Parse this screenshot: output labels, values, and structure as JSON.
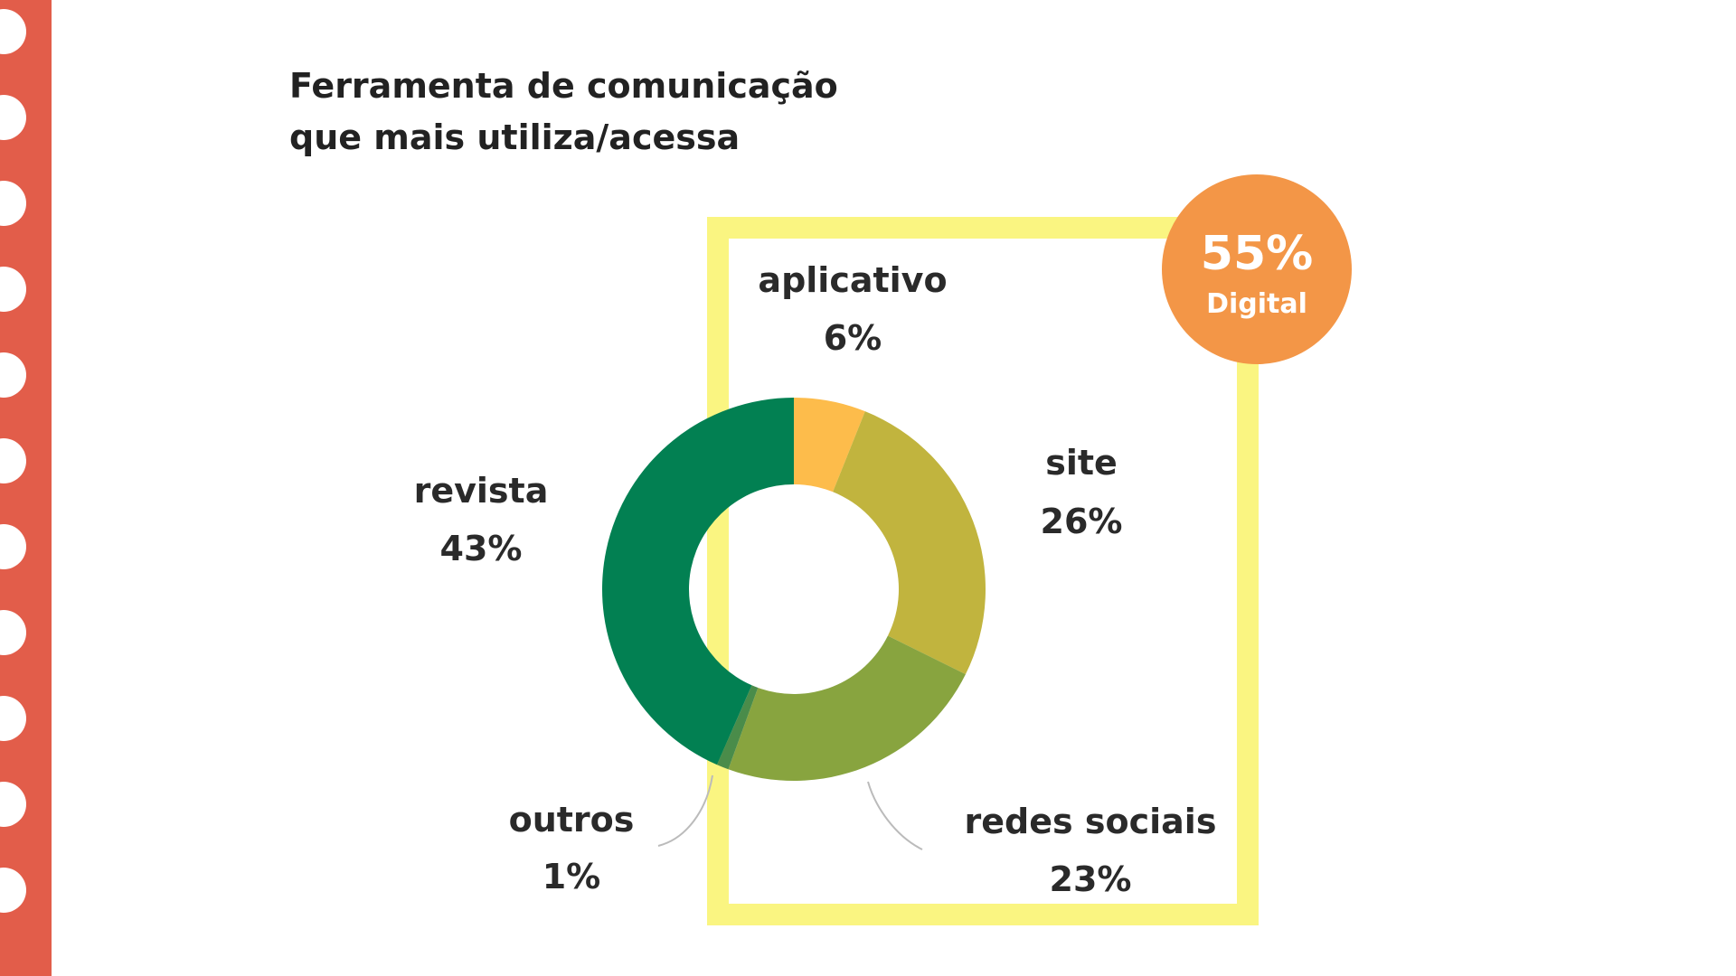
{
  "chart_data": {
    "type": "pie",
    "title": "Ferramenta de comunicação que mais utiliza/acessa",
    "title_lines": [
      "Ferramenta de comunicação",
      "que mais utiliza/acessa"
    ],
    "donut": true,
    "slices": [
      {
        "label": "aplicativo",
        "value": 6,
        "display": "6%",
        "color": "#FDBC4B"
      },
      {
        "label": "site",
        "value": 26,
        "display": "26%",
        "color": "#C1B43E"
      },
      {
        "label": "redes sociais",
        "value": 23,
        "display": "23%",
        "color": "#88A43F"
      },
      {
        "label": "outros",
        "value": 1,
        "display": "1%",
        "color": "#4A8C4A"
      },
      {
        "label": "revista",
        "value": 43,
        "display": "43%",
        "color": "#028052"
      }
    ],
    "highlight": {
      "value": "55%",
      "label": "Digital",
      "groups": [
        "aplicativo",
        "site",
        "redes sociais"
      ],
      "badge_color": "#F39647",
      "frame_color": "#FAF581"
    }
  },
  "colors": {
    "border_strip": "#E25D4A",
    "title_text": "#222222",
    "label_text": "#2A2A2A"
  }
}
